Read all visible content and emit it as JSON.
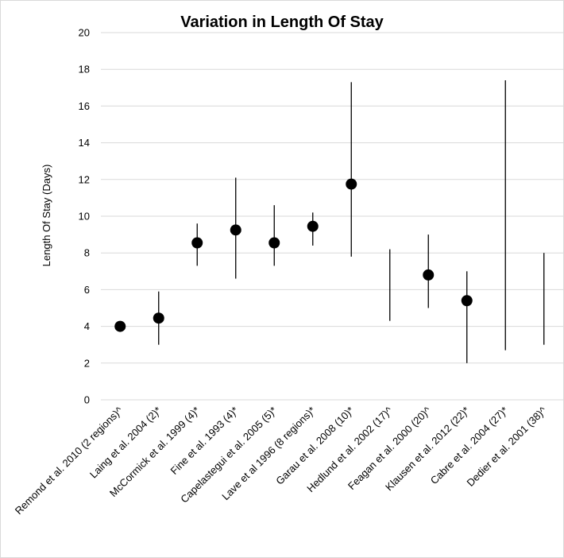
{
  "chart_data": {
    "type": "scatter",
    "title": "Variation in Length Of Stay",
    "xlabel": "",
    "ylabel": "Length Of Stay (Days)",
    "ylim": [
      0,
      20
    ],
    "yticks": [
      0,
      2,
      4,
      6,
      8,
      10,
      12,
      14,
      16,
      18,
      20
    ],
    "grid": "horizontal",
    "legend": "none",
    "colors": {
      "marker": "#000000",
      "range_line": "#000000",
      "grid": "#d9d9d9"
    },
    "categories": [
      "Remond et al. 2010 (2 regions)^",
      "Laing et al. 2004 (2)*",
      "McCormick et al. 1999 (4)*",
      "Fine et al. 1993 (4)*",
      "Capelastegui et al. 2005 (5)*",
      "Lave et al 1996 (8 regions)*",
      "Garau et al. 2008 (10)*",
      "Hedlund et al. 2002 (17)^",
      "Feagan et al. 2000 (20)^",
      "Klausen et al. 2012 (22)*",
      "Cabre et al. 2004 (27)*",
      "Dedier et al. 2001 (38)^"
    ],
    "series": [
      {
        "values": [
          4.0,
          4.45,
          8.55,
          9.25,
          8.55,
          9.45,
          11.75,
          null,
          6.8,
          5.4,
          null,
          null
        ]
      },
      {
        "low": [
          null,
          3.0,
          7.3,
          6.6,
          7.3,
          8.4,
          7.8,
          4.3,
          5.0,
          2.0,
          2.7,
          3.0
        ]
      },
      {
        "high": [
          null,
          5.9,
          9.6,
          12.1,
          10.6,
          10.2,
          17.3,
          8.2,
          9.0,
          7.0,
          17.4,
          8.0
        ]
      }
    ]
  }
}
